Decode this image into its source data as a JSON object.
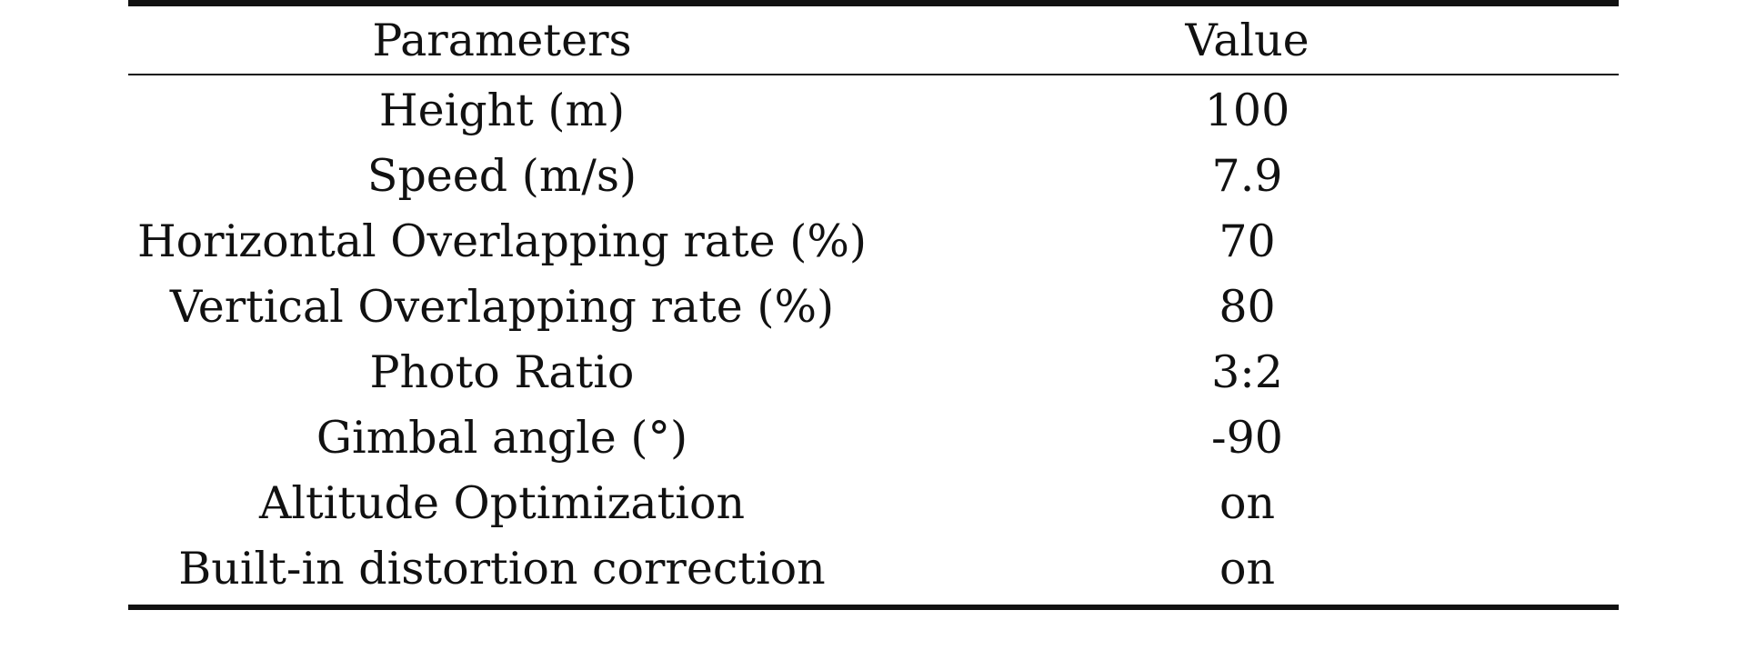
{
  "table": {
    "headers": {
      "parameter": "Parameters",
      "value": "Value"
    },
    "rows": [
      {
        "parameter": "Height (m)",
        "value": "100"
      },
      {
        "parameter": "Speed (m/s)",
        "value": "7.9"
      },
      {
        "parameter": "Horizontal Overlapping rate (%)",
        "value": "70"
      },
      {
        "parameter": "Vertical Overlapping rate (%)",
        "value": "80"
      },
      {
        "parameter": "Photo Ratio",
        "value": "3:2"
      },
      {
        "parameter": "Gimbal angle (°)",
        "value": "-90"
      },
      {
        "parameter": "Altitude Optimization",
        "value": "on"
      },
      {
        "parameter": "Built-in distortion correction",
        "value": "on"
      }
    ]
  }
}
